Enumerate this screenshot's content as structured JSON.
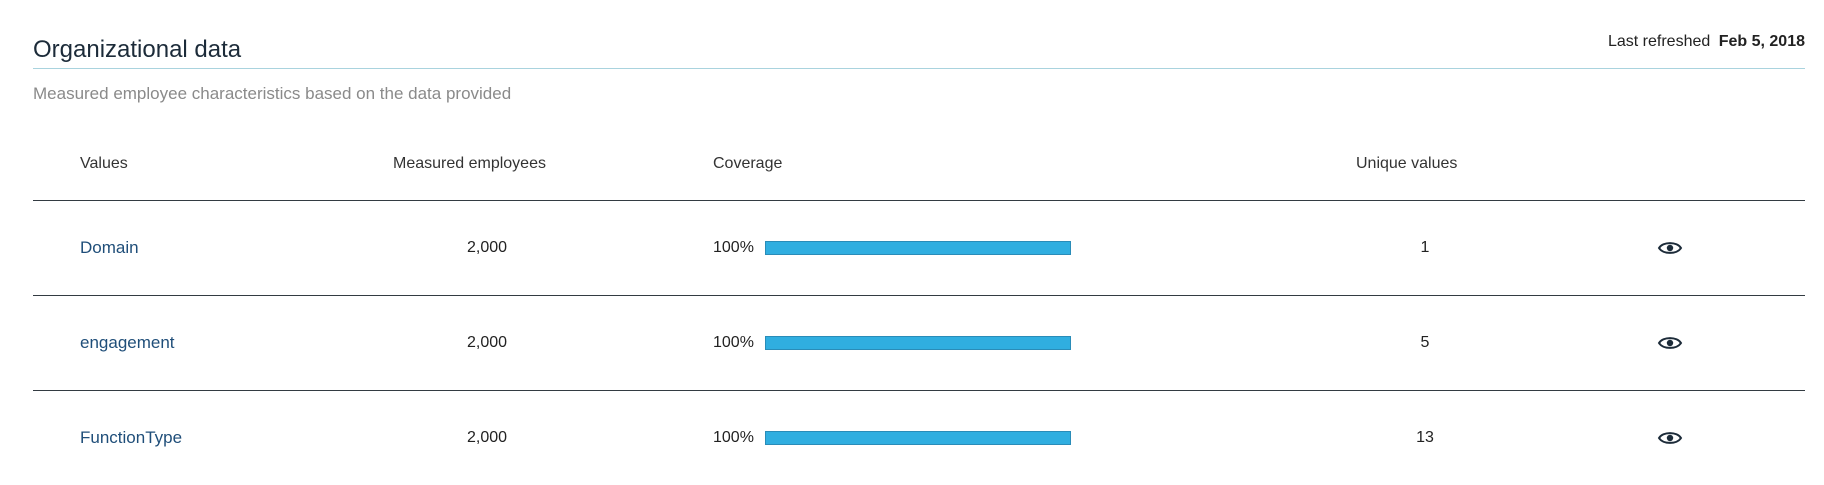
{
  "header": {
    "title": "Organizational data",
    "last_refreshed_label": "Last refreshed",
    "last_refreshed_date": "Feb 5, 2018"
  },
  "subtitle": "Measured employee characteristics based on the data provided",
  "table": {
    "columns": [
      "Values",
      "Measured employees",
      "Coverage",
      "Unique values"
    ],
    "rows": [
      {
        "name": "Domain",
        "measured_employees": "2,000",
        "coverage_label": "100%",
        "coverage": 1.0,
        "unique_values": "1"
      },
      {
        "name": "engagement",
        "measured_employees": "2,000",
        "coverage_label": "100%",
        "coverage": 1.0,
        "unique_values": "5"
      },
      {
        "name": "FunctionType",
        "measured_employees": "2,000",
        "coverage_label": "100%",
        "coverage": 1.0,
        "unique_values": "13"
      }
    ]
  },
  "icons": {
    "row_action": "eye-icon"
  },
  "colors": {
    "bar_fill": "#30aee0",
    "link": "#1f4e79",
    "header_rule": "#a9d3de"
  }
}
